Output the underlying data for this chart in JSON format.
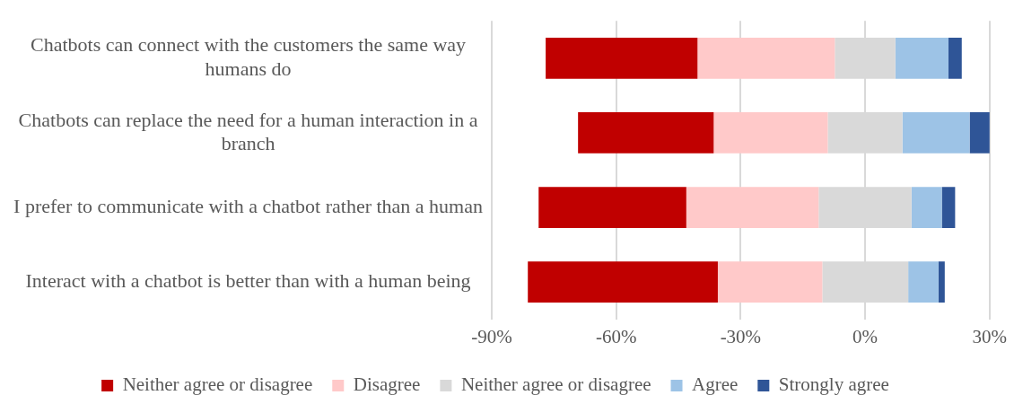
{
  "chart_data": {
    "type": "bar",
    "orientation": "horizontal",
    "categories": [
      "Chatbots can connect with the customers the same way humans do",
      "Chatbots can replace the need for a human interaction in a branch",
      "I prefer to communicate with a chatbot rather than a human",
      "Interact with a chatbot is better than with a human being"
    ],
    "series": [
      {
        "name": "Neither agree or disagree",
        "color": "#c00000",
        "base": [
          -77.0,
          -69.2,
          -78.7,
          -81.3
        ],
        "values": [
          36.6,
          32.7,
          35.6,
          45.8
        ]
      },
      {
        "name": "Disagree",
        "color": "#ffc9c9",
        "base": [
          -40.4,
          -36.5,
          -43.1,
          -35.5
        ],
        "values": [
          33.1,
          27.5,
          31.9,
          25.2
        ]
      },
      {
        "name": "Neither agree or disagree",
        "color": "#d9d9d9",
        "base": [
          -7.3,
          -9.0,
          -11.2,
          -10.3
        ],
        "values": [
          14.6,
          18.0,
          22.4,
          20.7
        ]
      },
      {
        "name": "Agree",
        "color": "#9dc3e6",
        "base": [
          7.3,
          9.0,
          11.2,
          10.4
        ],
        "values": [
          12.8,
          16.2,
          7.3,
          7.3
        ]
      },
      {
        "name": "Strongly agree",
        "color": "#2f5597",
        "base": [
          20.1,
          25.2,
          18.5,
          17.7
        ],
        "values": [
          3.2,
          5.3,
          3.2,
          1.5
        ]
      }
    ],
    "xlim": [
      -90,
      30
    ],
    "xticks": [
      {
        "value": -90,
        "label": "-90%"
      },
      {
        "value": -60,
        "label": "-60%"
      },
      {
        "value": -30,
        "label": "-30%"
      },
      {
        "value": 0,
        "label": "0%"
      },
      {
        "value": 30,
        "label": "30%"
      }
    ],
    "grid": "x",
    "legend": "bottom"
  }
}
